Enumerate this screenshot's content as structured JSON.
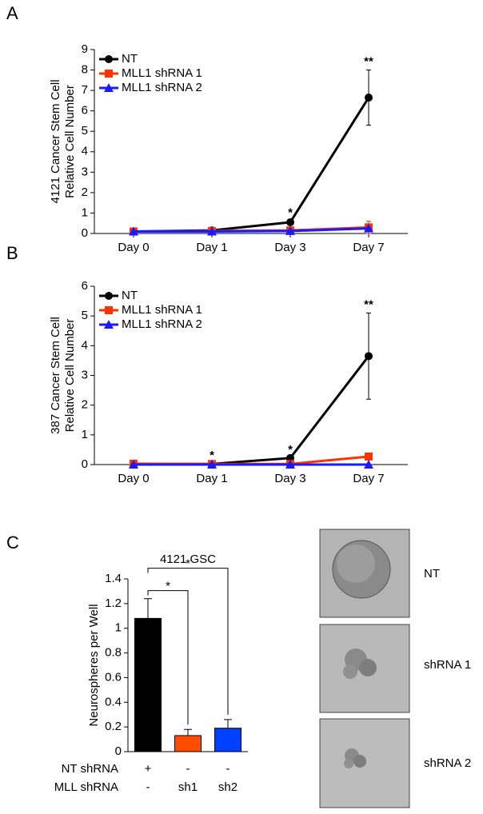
{
  "chart_data": [
    {
      "type": "line",
      "panel_label": "A",
      "ylabel": [
        "4121 Cancer Stem Cell",
        "Relative Cell Number"
      ],
      "categories": [
        "Day 0",
        "Day 1",
        "Day 3",
        "Day 7"
      ],
      "ylim": [
        0,
        9
      ],
      "yticks": [
        0,
        1,
        2,
        3,
        4,
        5,
        6,
        7,
        8,
        9
      ],
      "legend": "upper left",
      "series": [
        {
          "name": "NT",
          "color": "#000000",
          "marker": "circle",
          "values": [
            0.1,
            0.15,
            0.55,
            6.65
          ],
          "errors": [
            null,
            null,
            0.05,
            1.35
          ]
        },
        {
          "name": "MLL1 shRNA 1",
          "color": "#ff3300",
          "marker": "square",
          "values": [
            0.1,
            0.12,
            0.15,
            0.3
          ],
          "errors": [
            null,
            null,
            null,
            0.3
          ]
        },
        {
          "name": "MLL1 shRNA 2",
          "color": "#1a1aff",
          "marker": "triangle",
          "values": [
            0.1,
            0.1,
            0.12,
            0.25
          ],
          "errors": [
            null,
            null,
            null,
            null
          ]
        }
      ],
      "annotations": [
        {
          "text": "*",
          "x": "Day 3"
        },
        {
          "text": "**",
          "x": "Day 7"
        }
      ]
    },
    {
      "type": "line",
      "panel_label": "B",
      "ylabel": [
        "387 Cancer Stem Cell",
        "Relative Cell Number"
      ],
      "categories": [
        "Day 0",
        "Day 1",
        "Day 3",
        "Day 7"
      ],
      "ylim": [
        0,
        6
      ],
      "yticks": [
        0,
        1,
        2,
        3,
        4,
        5,
        6
      ],
      "legend": "upper left",
      "series": [
        {
          "name": "NT",
          "color": "#000000",
          "marker": "circle",
          "values": [
            0.02,
            0.02,
            0.22,
            3.65
          ],
          "errors": [
            null,
            null,
            null,
            1.45
          ]
        },
        {
          "name": "MLL1 shRNA 1",
          "color": "#ff3300",
          "marker": "square",
          "values": [
            0.03,
            0.02,
            0.02,
            0.27
          ],
          "errors": [
            null,
            null,
            null,
            null
          ]
        },
        {
          "name": "MLL1 shRNA 2",
          "color": "#1a1aff",
          "marker": "triangle",
          "values": [
            0,
            0,
            0,
            0
          ],
          "errors": [
            null,
            null,
            null,
            null
          ]
        }
      ],
      "annotations": [
        {
          "text": "*",
          "x": "Day 1"
        },
        {
          "text": "*",
          "x": "Day 3"
        },
        {
          "text": "**",
          "x": "Day 7"
        }
      ]
    },
    {
      "type": "bar",
      "panel_label": "C",
      "title": "4121 GSC",
      "ylabel": [
        "Neurospheres per Well"
      ],
      "ylim": [
        0,
        1.4
      ],
      "yticks": [
        0,
        0.2,
        0.4,
        0.6,
        0.8,
        1,
        1.2,
        1.4
      ],
      "values": [
        1.08,
        0.13,
        0.19
      ],
      "errors": [
        0.16,
        0.05,
        0.07
      ],
      "colors": [
        "#000000",
        "#ff4d00",
        "#0040ff"
      ],
      "condition_rows": [
        {
          "name": "NT shRNA",
          "labels": [
            "+",
            "-",
            "-"
          ]
        },
        {
          "name": "MLL shRNA",
          "labels": [
            "-",
            "sh1",
            "sh2"
          ]
        }
      ],
      "annotations": [
        "*",
        "*"
      ]
    }
  ],
  "micrographs": {
    "labels": [
      "NT",
      "shRNA 1",
      "shRNA 2"
    ]
  }
}
